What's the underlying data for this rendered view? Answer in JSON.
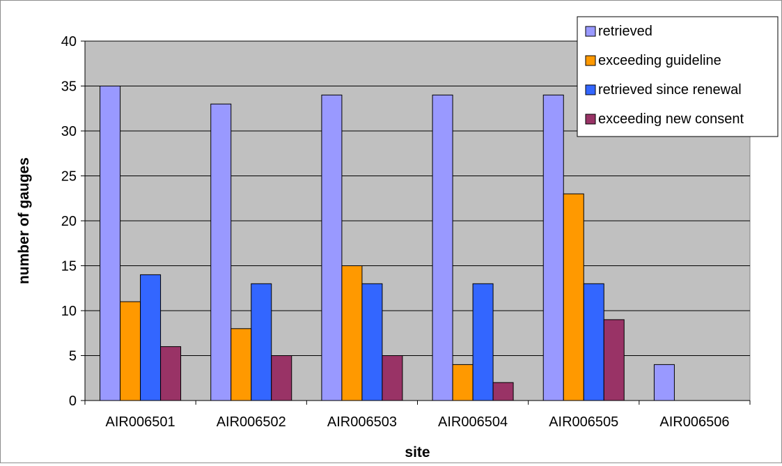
{
  "chart_data": {
    "type": "bar",
    "title": "",
    "xlabel": "site",
    "ylabel": "number of gauges",
    "ylim": [
      0,
      40
    ],
    "yticks": [
      0,
      5,
      10,
      15,
      20,
      25,
      30,
      35,
      40
    ],
    "grid": true,
    "legend_position": "top-right",
    "categories": [
      "AIR006501",
      "AIR006502",
      "AIR006503",
      "AIR006504",
      "AIR006505",
      "AIR006506"
    ],
    "series": [
      {
        "name": "retrieved",
        "color": "#9999ff",
        "values": [
          35,
          33,
          34,
          34,
          34,
          4
        ]
      },
      {
        "name": "exceeding guideline",
        "color": "#ff9900",
        "values": [
          11,
          8,
          15,
          4,
          23,
          0
        ]
      },
      {
        "name": "retrieved since renewal",
        "color": "#3366ff",
        "values": [
          14,
          13,
          13,
          13,
          13,
          0
        ]
      },
      {
        "name": "exceeding new consent",
        "color": "#993366",
        "values": [
          6,
          5,
          5,
          2,
          9,
          0
        ]
      }
    ],
    "plot_background": "#c0c0c0"
  }
}
